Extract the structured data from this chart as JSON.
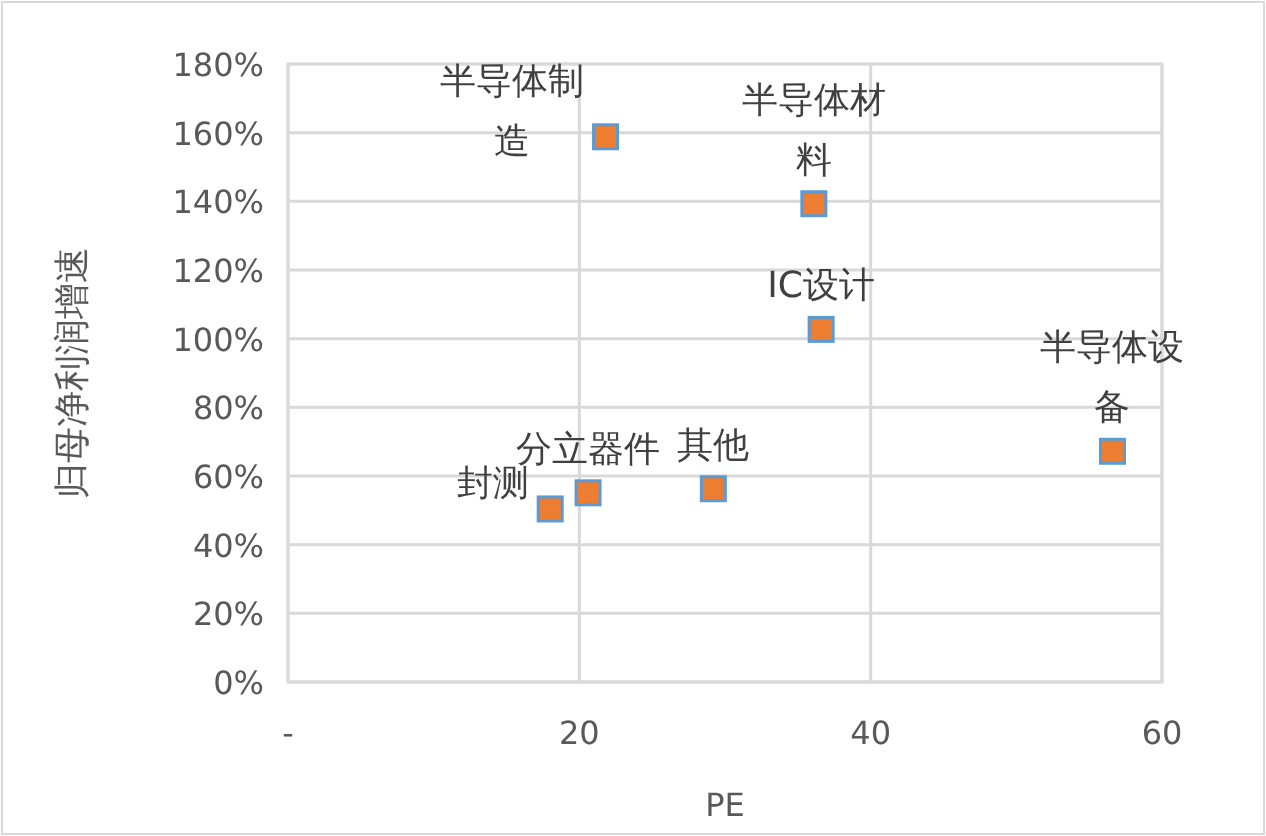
{
  "chart_data": {
    "type": "scatter",
    "xlabel": "PE",
    "ylabel": "归母净利润增速",
    "marker": "square",
    "grid": true,
    "color": "#ed7d31",
    "x": [
      18.0,
      20.6,
      29.2,
      21.8,
      36.1,
      36.6,
      56.6
    ],
    "values": [
      50.4,
      55.1,
      56.3,
      158.8,
      139.3,
      102.7,
      67.2
    ],
    "annotations": [
      {
        "text": "封测",
        "x": 18.0,
        "y": 50.4
      },
      {
        "text": "分立器件",
        "x": 20.6,
        "y": 55.1
      },
      {
        "text": "其他",
        "x": 29.2,
        "y": 56.3
      },
      {
        "text": "半导体制造",
        "x": 21.8,
        "y": 158.8
      },
      {
        "text": "半导体材料",
        "x": 36.1,
        "y": 139.3
      },
      {
        "text": "IC设计",
        "x": 36.6,
        "y": 102.7
      },
      {
        "text": "半导体设备",
        "x": 56.6,
        "y": 67.2
      }
    ],
    "xlim": [
      0,
      60
    ],
    "xticks": [
      {
        "value": 0,
        "label": "-"
      },
      20,
      40,
      60
    ],
    "ylim": [
      0,
      180
    ],
    "yticks": [
      {
        "value": 0,
        "label": "0%"
      },
      {
        "value": 20,
        "label": "20%"
      },
      {
        "value": 40,
        "label": "40%"
      },
      {
        "value": 60,
        "label": "60%"
      },
      {
        "value": 80,
        "label": "80%"
      },
      {
        "value": 100,
        "label": "100%"
      },
      {
        "value": 120,
        "label": "120%"
      },
      {
        "value": 140,
        "label": "140%"
      },
      {
        "value": 160,
        "label": "160%"
      },
      {
        "value": 180,
        "label": "180%"
      }
    ]
  }
}
